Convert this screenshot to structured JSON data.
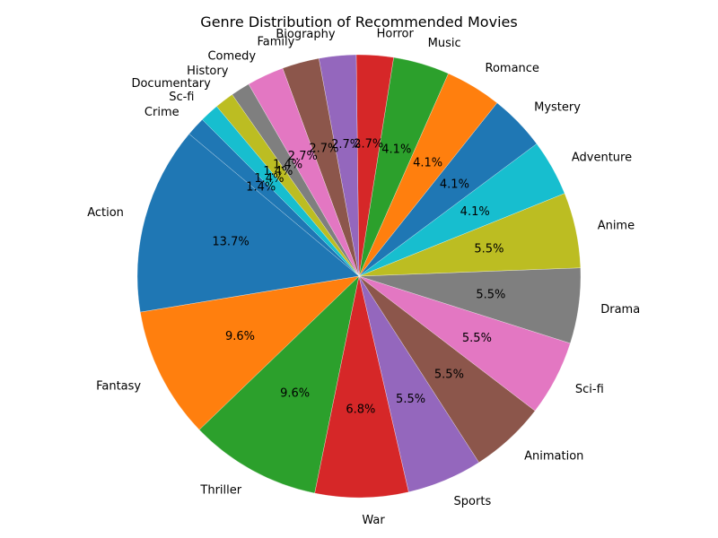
{
  "chart_data": {
    "type": "pie",
    "title": "Genre Distribution of Recommended Movies",
    "start_angle_deg": 135,
    "direction": "counterclockwise",
    "slices": [
      {
        "label": "Crime",
        "value": 1.4,
        "pct_label": "1.4%",
        "color": "#1f77b4"
      },
      {
        "label": "Action",
        "value": 13.7,
        "pct_label": "13.7%",
        "color": "#1f77b4"
      },
      {
        "label": "Fantasy",
        "value": 9.6,
        "pct_label": "9.6%",
        "color": "#ff7f0e"
      },
      {
        "label": "Thriller",
        "value": 9.6,
        "pct_label": "9.6%",
        "color": "#2ca02c"
      },
      {
        "label": "War",
        "value": 6.8,
        "pct_label": "6.8%",
        "color": "#d62728"
      },
      {
        "label": "Sports",
        "value": 5.5,
        "pct_label": "5.5%",
        "color": "#9467bd"
      },
      {
        "label": "Animation",
        "value": 5.5,
        "pct_label": "5.5%",
        "color": "#8c564b"
      },
      {
        "label": "Sci-fi",
        "value": 5.5,
        "pct_label": "5.5%",
        "color": "#e377c2"
      },
      {
        "label": "Drama",
        "value": 5.5,
        "pct_label": "5.5%",
        "color": "#7f7f7f"
      },
      {
        "label": "Anime",
        "value": 5.5,
        "pct_label": "5.5%",
        "color": "#bcbd22"
      },
      {
        "label": "Adventure",
        "value": 4.1,
        "pct_label": "4.1%",
        "color": "#17becf"
      },
      {
        "label": "Mystery",
        "value": 4.1,
        "pct_label": "4.1%",
        "color": "#1f77b4"
      },
      {
        "label": "Romance",
        "value": 4.1,
        "pct_label": "4.1%",
        "color": "#ff7f0e"
      },
      {
        "label": "Music",
        "value": 4.1,
        "pct_label": "4.1%",
        "color": "#2ca02c"
      },
      {
        "label": "Horror",
        "value": 2.7,
        "pct_label": "2.7%",
        "color": "#d62728"
      },
      {
        "label": "Biography",
        "value": 2.7,
        "pct_label": "2.7%",
        "color": "#9467bd"
      },
      {
        "label": "Family",
        "value": 2.7,
        "pct_label": "2.7%",
        "color": "#8c564b"
      },
      {
        "label": "Comedy",
        "value": 2.7,
        "pct_label": "2.7%",
        "color": "#e377c2"
      },
      {
        "label": "History",
        "value": 1.4,
        "pct_label": "1.4%",
        "color": "#7f7f7f"
      },
      {
        "label": "Documentary",
        "value": 1.4,
        "pct_label": "1.4%",
        "color": "#bcbd22"
      },
      {
        "label": "Sc-fi",
        "value": 1.4,
        "pct_label": "1.4%",
        "color": "#17becf"
      }
    ]
  }
}
